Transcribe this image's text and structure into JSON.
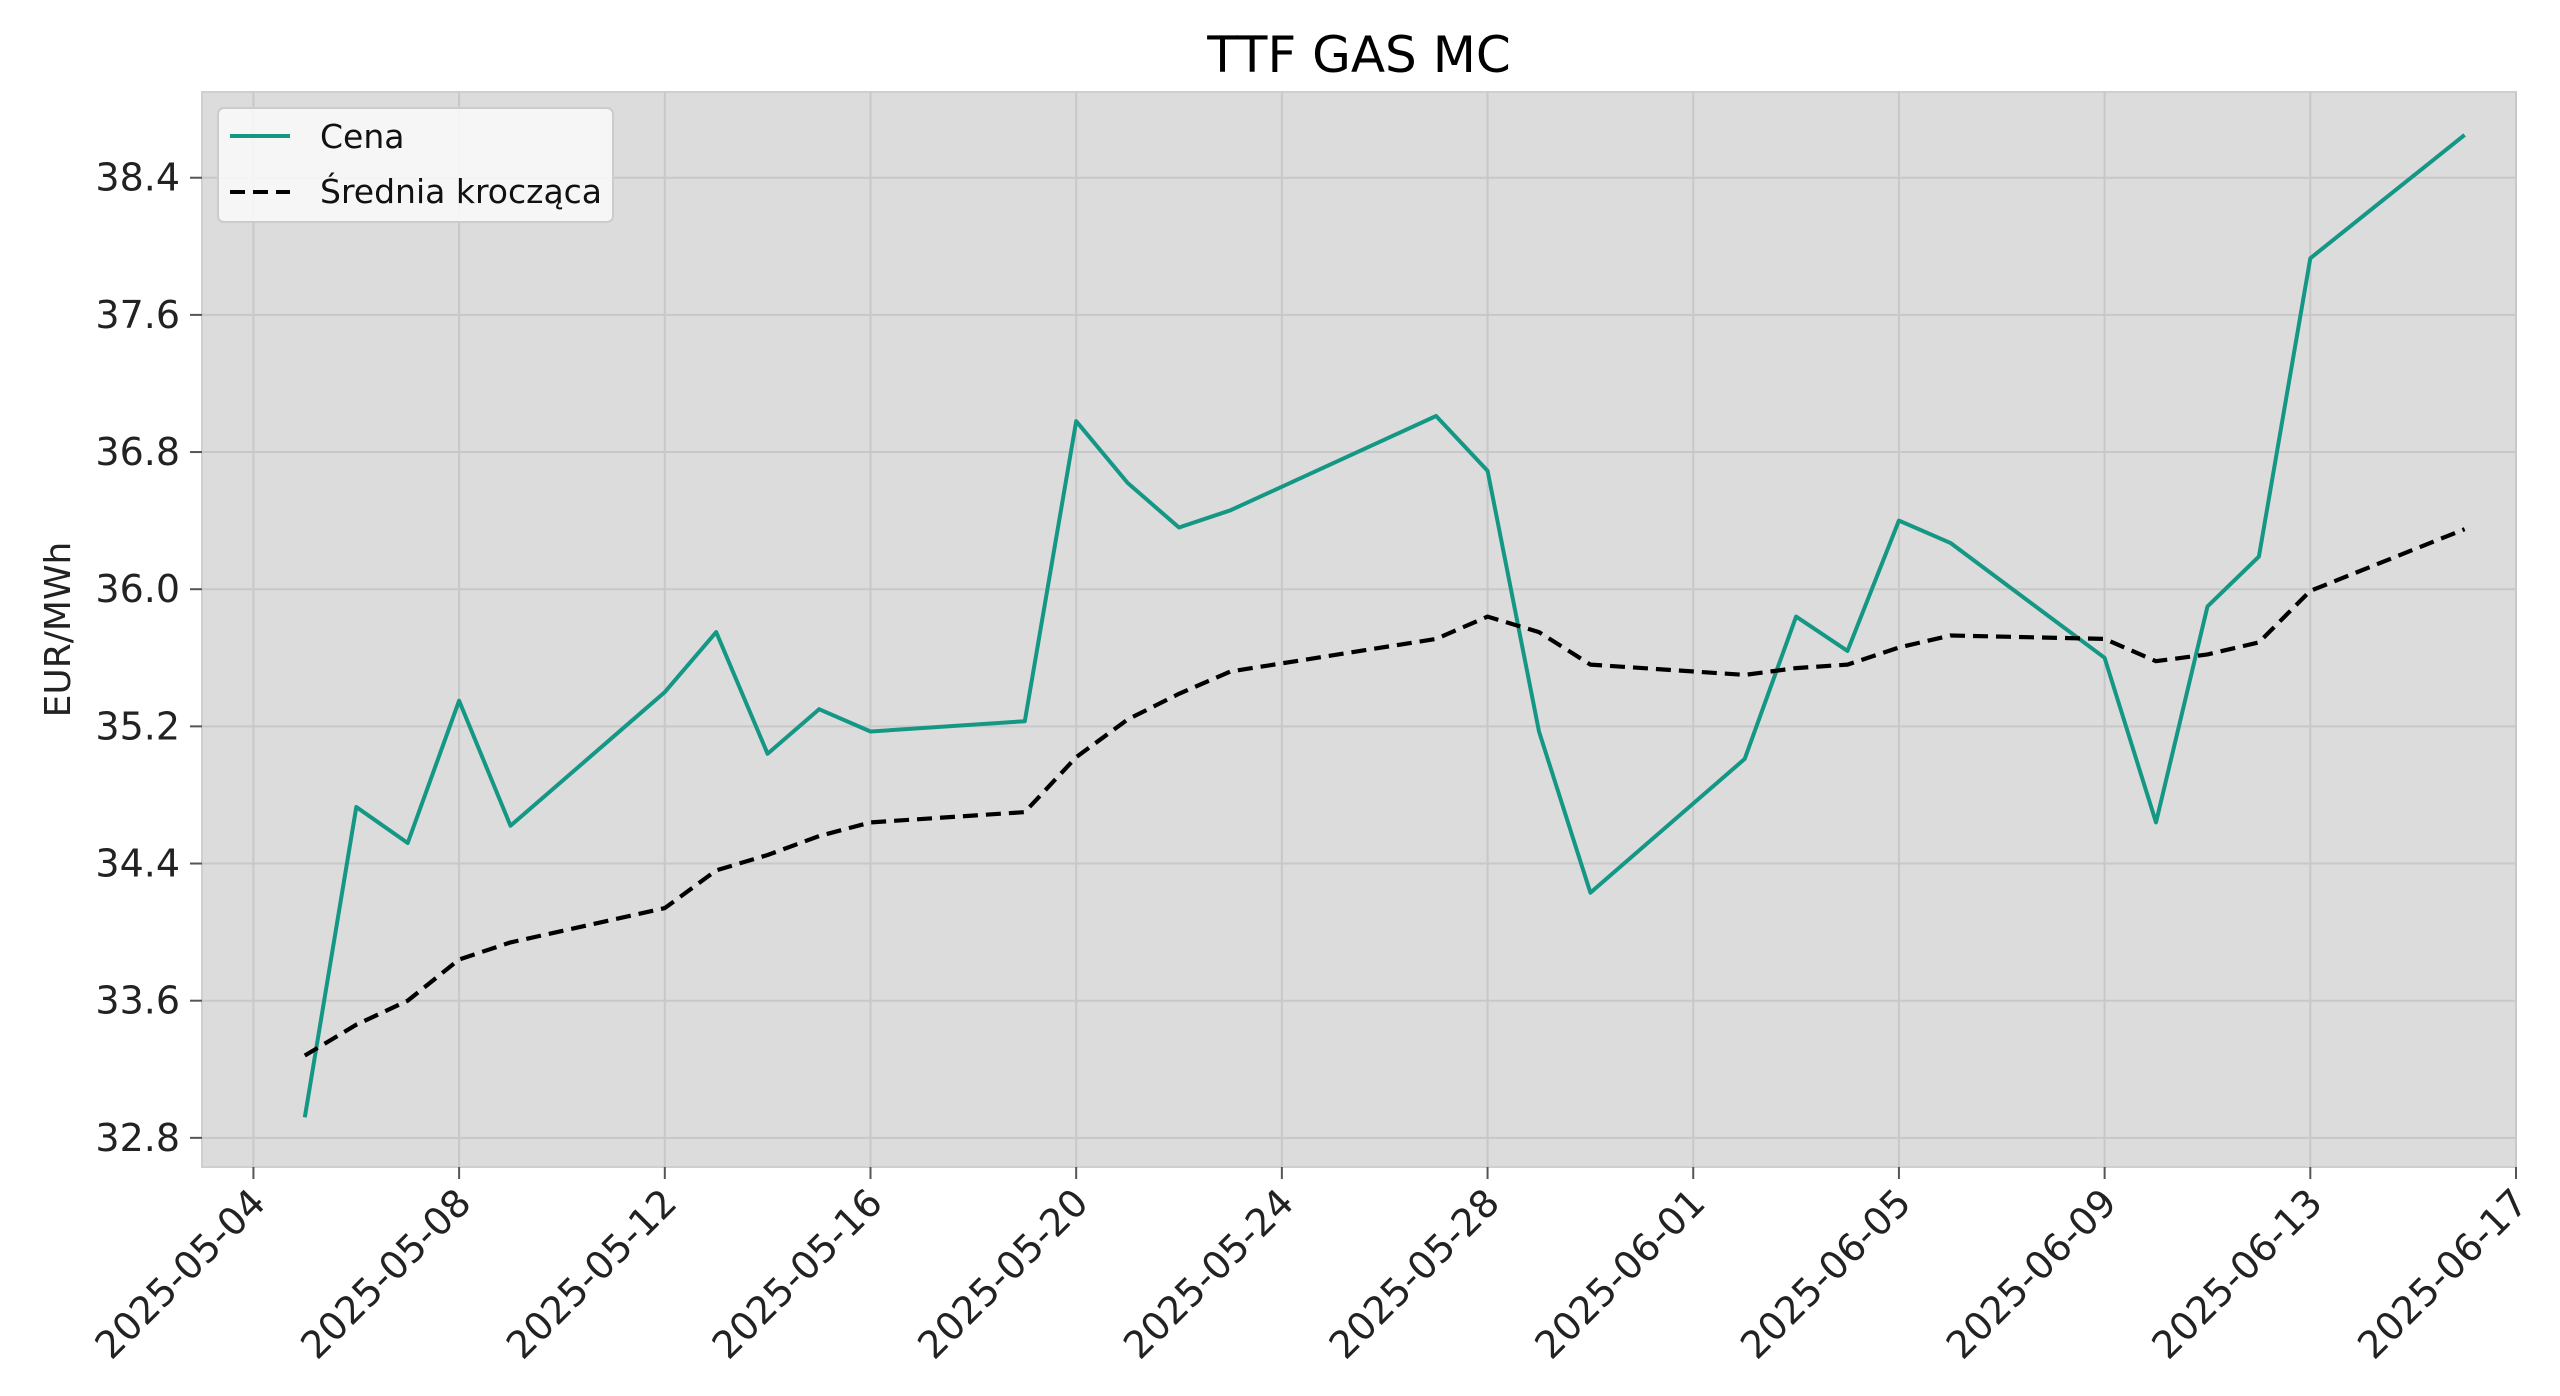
{
  "chart_data": {
    "type": "line",
    "title": "TTF GAS MC",
    "xlabel": "",
    "ylabel": "EUR/MWh",
    "x_axis": {
      "type": "date",
      "range": [
        "2025-05-03",
        "2025-06-17"
      ],
      "tick_labels": [
        "2025-05-04",
        "2025-05-08",
        "2025-05-12",
        "2025-05-16",
        "2025-05-20",
        "2025-05-24",
        "2025-05-28",
        "2025-06-01",
        "2025-06-05",
        "2025-06-09",
        "2025-06-13",
        "2025-06-17"
      ]
    },
    "y_axis": {
      "range": [
        32.63,
        38.9
      ],
      "tick_labels": [
        "32.8",
        "33.6",
        "34.4",
        "35.2",
        "36.0",
        "36.8",
        "37.6",
        "38.4"
      ]
    },
    "grid": true,
    "legend": {
      "position": "top-left",
      "entries": [
        "Cena",
        "Średnia krocząca"
      ]
    },
    "series": [
      {
        "name": "Cena",
        "color": "#149784",
        "style": "solid",
        "points": [
          [
            "2025-05-05",
            32.92
          ],
          [
            "2025-05-06",
            34.73
          ],
          [
            "2025-05-07",
            34.52
          ],
          [
            "2025-05-08",
            35.35
          ],
          [
            "2025-05-09",
            34.62
          ],
          [
            "2025-05-12",
            35.4
          ],
          [
            "2025-05-13",
            35.75
          ],
          [
            "2025-05-14",
            35.04
          ],
          [
            "2025-05-15",
            35.3
          ],
          [
            "2025-05-16",
            35.17
          ],
          [
            "2025-05-19",
            35.23
          ],
          [
            "2025-05-20",
            36.98
          ],
          [
            "2025-05-21",
            36.62
          ],
          [
            "2025-05-22",
            36.36
          ],
          [
            "2025-05-23",
            36.46
          ],
          [
            "2025-05-27",
            37.01
          ],
          [
            "2025-05-28",
            36.69
          ],
          [
            "2025-05-29",
            35.17
          ],
          [
            "2025-05-30",
            34.23
          ],
          [
            "2025-06-02",
            35.01
          ],
          [
            "2025-06-03",
            35.84
          ],
          [
            "2025-06-04",
            35.64
          ],
          [
            "2025-06-05",
            36.4
          ],
          [
            "2025-06-06",
            36.27
          ],
          [
            "2025-06-09",
            35.6
          ],
          [
            "2025-06-10",
            34.64
          ],
          [
            "2025-06-11",
            35.9
          ],
          [
            "2025-06-12",
            36.19
          ],
          [
            "2025-06-13",
            37.93
          ],
          [
            "2025-06-16",
            38.65
          ]
        ]
      },
      {
        "name": "Średnia krocząca",
        "color": "#000000",
        "style": "dashed",
        "points": [
          [
            "2025-05-05",
            33.28
          ],
          [
            "2025-05-06",
            33.46
          ],
          [
            "2025-05-07",
            33.6
          ],
          [
            "2025-05-08",
            33.84
          ],
          [
            "2025-05-09",
            33.94
          ],
          [
            "2025-05-12",
            34.14
          ],
          [
            "2025-05-13",
            34.36
          ],
          [
            "2025-05-14",
            34.45
          ],
          [
            "2025-05-15",
            34.56
          ],
          [
            "2025-05-16",
            34.64
          ],
          [
            "2025-05-19",
            34.7
          ],
          [
            "2025-05-20",
            35.02
          ],
          [
            "2025-05-21",
            35.24
          ],
          [
            "2025-05-22",
            35.39
          ],
          [
            "2025-05-23",
            35.52
          ],
          [
            "2025-05-27",
            35.71
          ],
          [
            "2025-05-28",
            35.84
          ],
          [
            "2025-05-29",
            35.75
          ],
          [
            "2025-05-30",
            35.56
          ],
          [
            "2025-06-02",
            35.5
          ],
          [
            "2025-06-03",
            35.54
          ],
          [
            "2025-06-04",
            35.56
          ],
          [
            "2025-06-05",
            35.66
          ],
          [
            "2025-06-06",
            35.73
          ],
          [
            "2025-06-09",
            35.71
          ],
          [
            "2025-06-10",
            35.58
          ],
          [
            "2025-06-11",
            35.62
          ],
          [
            "2025-06-12",
            35.69
          ],
          [
            "2025-06-13",
            35.99
          ],
          [
            "2025-06-16",
            36.35
          ]
        ]
      }
    ],
    "colors": {
      "plot_background": "#dcdcdc",
      "grid": "#c8c8c8",
      "page_background": "#ffffff"
    }
  }
}
